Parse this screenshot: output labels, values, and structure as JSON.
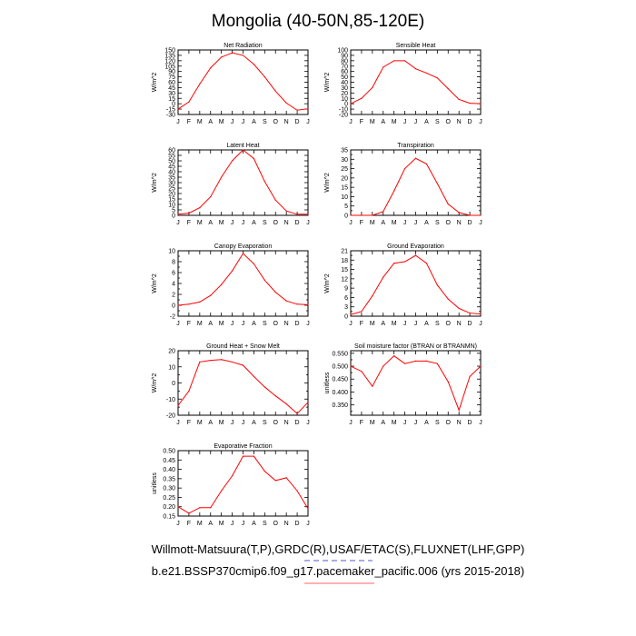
{
  "figure": {
    "title": "Mongolia (40-50N,85-120E)",
    "footer_line1": "Willmott-Matsuura(T,P),GRDC(R),USAF/ETAC(S),FLUXNET(LHF,GPP)",
    "footer_line2": "b.e21.BSSP370cmip6.f09_g17.pacemaker_pacific.006 (yrs 2015-2018)",
    "line_color": "#ff0000",
    "legend_dash_color": "#5555cc",
    "legend_solid_color": "#ff6666"
  },
  "chart_data": [
    {
      "type": "line",
      "title": "Net Radiation",
      "ylabel": "W/m^2",
      "categories": [
        "J",
        "F",
        "M",
        "A",
        "M",
        "J",
        "J",
        "A",
        "S",
        "O",
        "N",
        "D",
        "J"
      ],
      "values": [
        -15,
        5,
        55,
        100,
        130,
        142,
        135,
        110,
        75,
        35,
        2,
        -18,
        -14
      ],
      "ylim": [
        -30,
        150
      ],
      "yticks": [
        "-30",
        "-15",
        "0",
        "15",
        "30",
        "45",
        "60",
        "75",
        "90",
        "105",
        "120",
        "135",
        "150"
      ]
    },
    {
      "type": "line",
      "title": "Sensible Heat",
      "ylabel": "W/m^2",
      "categories": [
        "J",
        "F",
        "M",
        "A",
        "M",
        "J",
        "J",
        "A",
        "S",
        "O",
        "N",
        "D",
        "J"
      ],
      "values": [
        0,
        10,
        30,
        68,
        80,
        80,
        65,
        57,
        48,
        28,
        8,
        1,
        0
      ],
      "ylim": [
        -20,
        100
      ],
      "yticks": [
        "-20",
        "-10",
        "0",
        "10",
        "20",
        "30",
        "40",
        "50",
        "60",
        "70",
        "80",
        "90",
        "100"
      ]
    },
    {
      "type": "line",
      "title": "Latent Heat",
      "ylabel": "W/m^2",
      "categories": [
        "J",
        "F",
        "M",
        "A",
        "M",
        "J",
        "J",
        "A",
        "S",
        "O",
        "N",
        "D",
        "J"
      ],
      "values": [
        1,
        2,
        7,
        17,
        35,
        50,
        60,
        52,
        31,
        14,
        4,
        1,
        1
      ],
      "ylim": [
        0,
        60
      ],
      "yticks": [
        "0",
        "5",
        "10",
        "15",
        "20",
        "25",
        "30",
        "35",
        "40",
        "45",
        "50",
        "55",
        "60"
      ]
    },
    {
      "type": "line",
      "title": "Transpiration",
      "ylabel": "W/m^2",
      "categories": [
        "J",
        "F",
        "M",
        "A",
        "M",
        "J",
        "J",
        "A",
        "S",
        "O",
        "N",
        "D",
        "J"
      ],
      "values": [
        0,
        0,
        0,
        2,
        13,
        25,
        30.5,
        27.5,
        17,
        6,
        1.5,
        0,
        0
      ],
      "ylim": [
        0,
        35
      ],
      "yticks": [
        "0",
        "2.5",
        "5",
        "7.5",
        "10",
        "12.5",
        "15",
        "17.5",
        "20",
        "22.5",
        "25",
        "27.5",
        "30",
        "32.5",
        "35"
      ],
      "ytick_labels_shown": [
        "0",
        "5",
        "10",
        "15",
        "20",
        "25",
        "30",
        "35"
      ]
    },
    {
      "type": "line",
      "title": "Canopy Evaporation",
      "ylabel": "W/m^2",
      "categories": [
        "J",
        "F",
        "M",
        "A",
        "M",
        "J",
        "J",
        "A",
        "S",
        "O",
        "N",
        "D",
        "J"
      ],
      "values": [
        0,
        0.2,
        0.6,
        1.8,
        3.8,
        6.3,
        9.5,
        7.6,
        4.6,
        2.4,
        0.8,
        0.2,
        0.1
      ],
      "ylim": [
        -2,
        10
      ],
      "yticks": [
        "-2",
        "-1",
        "0",
        "1",
        "2",
        "3",
        "4",
        "5",
        "6",
        "7",
        "8",
        "9",
        "10"
      ],
      "ytick_labels_shown": [
        "-2",
        "0",
        "2",
        "4",
        "6",
        "8",
        "10"
      ]
    },
    {
      "type": "line",
      "title": "Ground Evaporation",
      "ylabel": "W/m^2",
      "categories": [
        "J",
        "F",
        "M",
        "A",
        "M",
        "J",
        "J",
        "A",
        "S",
        "O",
        "N",
        "D",
        "J"
      ],
      "values": [
        0.5,
        1.5,
        6.5,
        12.5,
        17,
        17.5,
        19.5,
        17,
        10,
        5.5,
        2.5,
        1,
        0.7
      ],
      "ylim": [
        0,
        21
      ],
      "yticks": [
        "0",
        "1.5",
        "3",
        "4.5",
        "6",
        "7.5",
        "9",
        "10.5",
        "12",
        "13.5",
        "15",
        "16.5",
        "18",
        "19.5",
        "21"
      ],
      "ytick_labels_shown": [
        "0",
        "3",
        "6",
        "9",
        "12",
        "15",
        "18",
        "21"
      ]
    },
    {
      "type": "line",
      "title": "Ground Heat + Snow Melt",
      "ylabel": "W/m^2",
      "categories": [
        "J",
        "F",
        "M",
        "A",
        "M",
        "J",
        "J",
        "A",
        "S",
        "O",
        "N",
        "D",
        "J"
      ],
      "values": [
        -14,
        -5,
        13,
        14,
        14.5,
        13,
        11,
        4,
        -2.5,
        -8,
        -13,
        -19,
        -12
      ],
      "ylim": [
        -20,
        20
      ],
      "yticks": [
        "-20",
        "-15",
        "-10",
        "-5",
        "0",
        "5",
        "10",
        "15",
        "20"
      ],
      "ytick_labels_shown": [
        "-20",
        "-10",
        "0",
        "10",
        "20"
      ]
    },
    {
      "type": "line",
      "title": "Soil moisture factor (BTRAN or BTRANMN)",
      "ylabel": "unitless",
      "categories": [
        "J",
        "F",
        "M",
        "A",
        "M",
        "J",
        "J",
        "A",
        "S",
        "O",
        "N",
        "D",
        "J"
      ],
      "values": [
        0.5,
        0.48,
        0.422,
        0.5,
        0.54,
        0.51,
        0.52,
        0.52,
        0.51,
        0.44,
        0.33,
        0.46,
        0.5
      ],
      "ylim": [
        0.31,
        0.56
      ],
      "yticks": [
        "0.325",
        "0.350",
        "0.375",
        "0.400",
        "0.425",
        "0.450",
        "0.475",
        "0.500",
        "0.525",
        "0.550"
      ],
      "ytick_labels_shown": [
        "0.350",
        "0.400",
        "0.450",
        "0.500",
        "0.550"
      ]
    },
    {
      "type": "line",
      "title": "Evaporative Fraction",
      "ylabel": "unitless",
      "categories": [
        "J",
        "F",
        "M",
        "A",
        "M",
        "J",
        "J",
        "A",
        "S",
        "O",
        "N",
        "D",
        "J"
      ],
      "values": [
        0.2,
        0.165,
        0.195,
        0.195,
        0.285,
        0.365,
        0.47,
        0.47,
        0.39,
        0.34,
        0.355,
        0.285,
        0.19
      ],
      "ylim": [
        0.15,
        0.5
      ],
      "yticks": [
        "0.15",
        "0.20",
        "0.25",
        "0.30",
        "0.35",
        "0.40",
        "0.45",
        "0.50"
      ]
    }
  ]
}
